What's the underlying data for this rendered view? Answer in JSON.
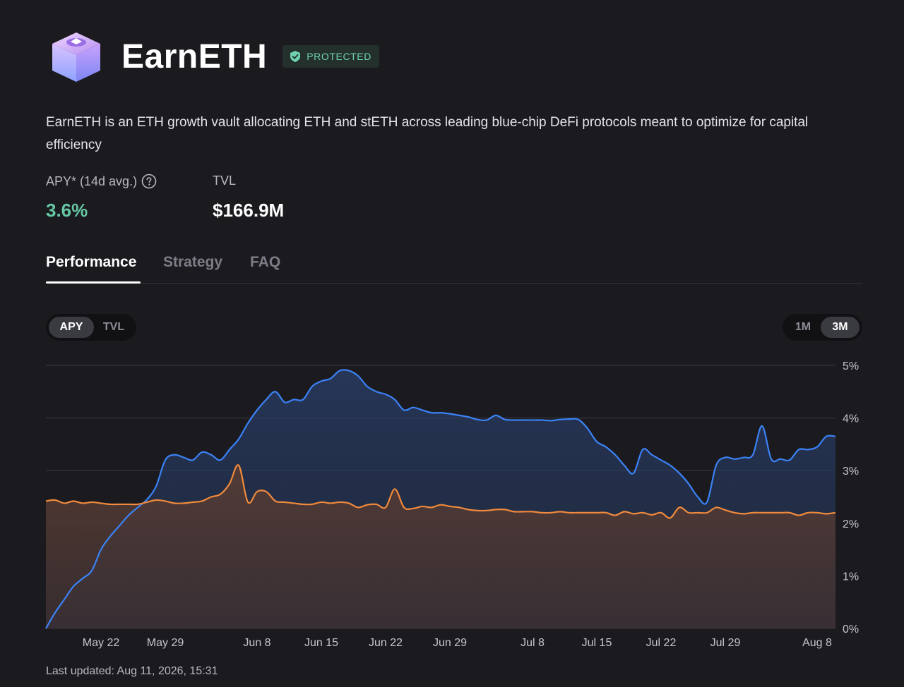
{
  "vault": {
    "name": "EarnETH",
    "badge": "PROTECTED",
    "description": "EarnETH is an ETH growth vault allocating ETH and stETH across leading blue-chip DeFi protocols meant to optimize for capital efficiency"
  },
  "stats": {
    "apy_label": "APY* (14d avg.)",
    "apy_value": "3.6%",
    "tvl_label": "TVL",
    "tvl_value": "$166.9M"
  },
  "tabs": [
    "Performance",
    "Strategy",
    "FAQ"
  ],
  "metric_toggle": {
    "options": [
      "APY",
      "TVL"
    ],
    "selected": "APY"
  },
  "range_toggle": {
    "options": [
      "1M",
      "3M"
    ],
    "selected": "3M"
  },
  "footer": {
    "last_updated": "Last updated: Aug 11, 2026, 15:31"
  },
  "icons": {
    "logo": "vault-box-logo",
    "badge": "shield-check-icon",
    "help": "question-circle-icon"
  },
  "colors": {
    "accent_green": "#66c7a4",
    "series_blue": "#3b82f6",
    "series_orange": "#f08a3c",
    "background": "#1b1b1f"
  },
  "chart_data": {
    "type": "area",
    "ylim": [
      0,
      5
    ],
    "y_ticks": [
      "0%",
      "1%",
      "2%",
      "3%",
      "4%",
      "5%"
    ],
    "x_ticks": [
      {
        "day": 4,
        "label": "May 22"
      },
      {
        "day": 11,
        "label": "May 29"
      },
      {
        "day": 21,
        "label": "Jun 8"
      },
      {
        "day": 28,
        "label": "Jun 15"
      },
      {
        "day": 35,
        "label": "Jun 22"
      },
      {
        "day": 42,
        "label": "Jun 29"
      },
      {
        "day": 51,
        "label": "Jul 8"
      },
      {
        "day": 58,
        "label": "Jul 15"
      },
      {
        "day": 65,
        "label": "Jul 22"
      },
      {
        "day": 72,
        "label": "Jul 29"
      },
      {
        "day": 82,
        "label": "Aug 8"
      }
    ],
    "series": [
      {
        "color": "#3b82f6",
        "points": [
          [
            -2,
            0.0
          ],
          [
            -1,
            0.3
          ],
          [
            0,
            0.55
          ],
          [
            1,
            0.8
          ],
          [
            2,
            0.95
          ],
          [
            3,
            1.1
          ],
          [
            4,
            1.5
          ],
          [
            5,
            1.75
          ],
          [
            6,
            1.95
          ],
          [
            7,
            2.15
          ],
          [
            8,
            2.3
          ],
          [
            9,
            2.45
          ],
          [
            10,
            2.7
          ],
          [
            11,
            3.2
          ],
          [
            12,
            3.3
          ],
          [
            13,
            3.25
          ],
          [
            14,
            3.2
          ],
          [
            15,
            3.35
          ],
          [
            16,
            3.3
          ],
          [
            17,
            3.2
          ],
          [
            18,
            3.4
          ],
          [
            19,
            3.6
          ],
          [
            20,
            3.9
          ],
          [
            21,
            4.15
          ],
          [
            22,
            4.35
          ],
          [
            23,
            4.5
          ],
          [
            24,
            4.3
          ],
          [
            25,
            4.35
          ],
          [
            26,
            4.35
          ],
          [
            27,
            4.6
          ],
          [
            28,
            4.7
          ],
          [
            29,
            4.75
          ],
          [
            30,
            4.9
          ],
          [
            31,
            4.9
          ],
          [
            32,
            4.8
          ],
          [
            33,
            4.6
          ],
          [
            34,
            4.5
          ],
          [
            35,
            4.45
          ],
          [
            36,
            4.35
          ],
          [
            37,
            4.15
          ],
          [
            38,
            4.2
          ],
          [
            39,
            4.15
          ],
          [
            40,
            4.1
          ],
          [
            41,
            4.1
          ],
          [
            42,
            4.08
          ],
          [
            43,
            4.05
          ],
          [
            44,
            4.02
          ],
          [
            45,
            3.97
          ],
          [
            46,
            3.96
          ],
          [
            47,
            4.05
          ],
          [
            48,
            3.97
          ],
          [
            49,
            3.96
          ],
          [
            50,
            3.96
          ],
          [
            51,
            3.96
          ],
          [
            52,
            3.96
          ],
          [
            53,
            3.95
          ],
          [
            54,
            3.97
          ],
          [
            55,
            3.98
          ],
          [
            56,
            3.97
          ],
          [
            57,
            3.8
          ],
          [
            58,
            3.55
          ],
          [
            59,
            3.45
          ],
          [
            60,
            3.3
          ],
          [
            61,
            3.1
          ],
          [
            62,
            2.95
          ],
          [
            63,
            3.4
          ],
          [
            64,
            3.3
          ],
          [
            65,
            3.2
          ],
          [
            66,
            3.1
          ],
          [
            67,
            2.95
          ],
          [
            68,
            2.75
          ],
          [
            69,
            2.5
          ],
          [
            70,
            2.4
          ],
          [
            71,
            3.1
          ],
          [
            72,
            3.25
          ],
          [
            73,
            3.22
          ],
          [
            74,
            3.25
          ],
          [
            75,
            3.3
          ],
          [
            76,
            3.85
          ],
          [
            77,
            3.22
          ],
          [
            78,
            3.22
          ],
          [
            79,
            3.2
          ],
          [
            80,
            3.4
          ],
          [
            81,
            3.4
          ],
          [
            82,
            3.45
          ],
          [
            83,
            3.65
          ],
          [
            84,
            3.65
          ]
        ]
      },
      {
        "color": "#f08a3c",
        "points": [
          [
            -2,
            2.42
          ],
          [
            -1,
            2.44
          ],
          [
            0,
            2.38
          ],
          [
            1,
            2.42
          ],
          [
            2,
            2.38
          ],
          [
            3,
            2.4
          ],
          [
            4,
            2.38
          ],
          [
            5,
            2.36
          ],
          [
            6,
            2.36
          ],
          [
            7,
            2.36
          ],
          [
            8,
            2.36
          ],
          [
            9,
            2.4
          ],
          [
            10,
            2.44
          ],
          [
            11,
            2.42
          ],
          [
            12,
            2.38
          ],
          [
            13,
            2.38
          ],
          [
            14,
            2.4
          ],
          [
            15,
            2.42
          ],
          [
            16,
            2.5
          ],
          [
            17,
            2.55
          ],
          [
            18,
            2.75
          ],
          [
            19,
            3.1
          ],
          [
            20,
            2.4
          ],
          [
            21,
            2.6
          ],
          [
            22,
            2.6
          ],
          [
            23,
            2.42
          ],
          [
            24,
            2.4
          ],
          [
            25,
            2.38
          ],
          [
            26,
            2.36
          ],
          [
            27,
            2.36
          ],
          [
            28,
            2.4
          ],
          [
            29,
            2.38
          ],
          [
            30,
            2.4
          ],
          [
            31,
            2.38
          ],
          [
            32,
            2.3
          ],
          [
            33,
            2.35
          ],
          [
            34,
            2.36
          ],
          [
            35,
            2.3
          ],
          [
            36,
            2.65
          ],
          [
            37,
            2.3
          ],
          [
            38,
            2.28
          ],
          [
            39,
            2.32
          ],
          [
            40,
            2.3
          ],
          [
            41,
            2.35
          ],
          [
            42,
            2.32
          ],
          [
            43,
            2.3
          ],
          [
            44,
            2.26
          ],
          [
            45,
            2.24
          ],
          [
            46,
            2.24
          ],
          [
            47,
            2.26
          ],
          [
            48,
            2.26
          ],
          [
            49,
            2.22
          ],
          [
            50,
            2.22
          ],
          [
            51,
            2.22
          ],
          [
            52,
            2.2
          ],
          [
            53,
            2.2
          ],
          [
            54,
            2.22
          ],
          [
            55,
            2.2
          ],
          [
            56,
            2.2
          ],
          [
            57,
            2.2
          ],
          [
            58,
            2.2
          ],
          [
            59,
            2.2
          ],
          [
            60,
            2.15
          ],
          [
            61,
            2.22
          ],
          [
            62,
            2.18
          ],
          [
            63,
            2.2
          ],
          [
            64,
            2.16
          ],
          [
            65,
            2.2
          ],
          [
            66,
            2.1
          ],
          [
            67,
            2.3
          ],
          [
            68,
            2.2
          ],
          [
            69,
            2.2
          ],
          [
            70,
            2.2
          ],
          [
            71,
            2.3
          ],
          [
            72,
            2.25
          ],
          [
            73,
            2.2
          ],
          [
            74,
            2.18
          ],
          [
            75,
            2.2
          ],
          [
            76,
            2.2
          ],
          [
            77,
            2.2
          ],
          [
            78,
            2.2
          ],
          [
            79,
            2.2
          ],
          [
            80,
            2.15
          ],
          [
            81,
            2.2
          ],
          [
            82,
            2.2
          ],
          [
            83,
            2.18
          ],
          [
            84,
            2.2
          ]
        ]
      }
    ]
  }
}
